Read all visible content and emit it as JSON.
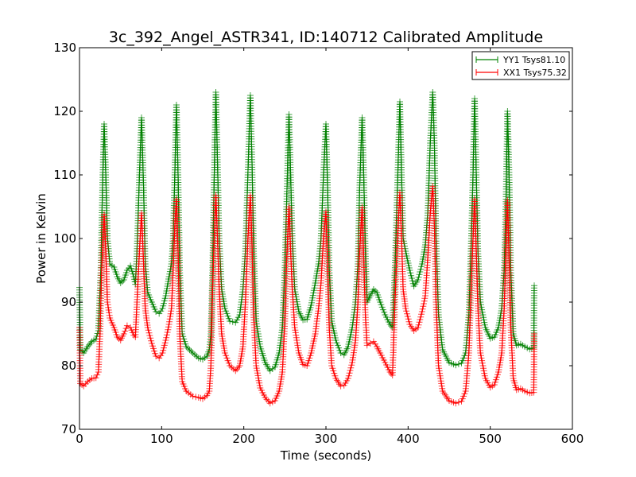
{
  "chart_data": {
    "type": "line",
    "title": "3c_392_Angel_ASTR341, ID:140712 Calibrated Amplitude",
    "xlabel": "Time (seconds)",
    "ylabel": "Power in Kelvin",
    "xlim": [
      0,
      600
    ],
    "ylim": [
      70,
      130
    ],
    "xticks": [
      "0",
      "100",
      "200",
      "300",
      "400",
      "500",
      "600"
    ],
    "yticks": [
      "70",
      "80",
      "90",
      "100",
      "110",
      "120",
      "130"
    ],
    "grid": false,
    "legend": "top-right",
    "marker": "+",
    "series": [
      {
        "name": "YY1 Tsys81.10",
        "color": "#008000",
        "points": [
          [
            0,
            92.3
          ],
          [
            1,
            82.5
          ],
          [
            5,
            82.0
          ],
          [
            10,
            83.0
          ],
          [
            15,
            83.8
          ],
          [
            20,
            84.2
          ],
          [
            23,
            85.5
          ],
          [
            26,
            95
          ],
          [
            28,
            108
          ],
          [
            30,
            118
          ],
          [
            32,
            110
          ],
          [
            34,
            100
          ],
          [
            37,
            96
          ],
          [
            42,
            95.5
          ],
          [
            46,
            94
          ],
          [
            50,
            93
          ],
          [
            54,
            93.5
          ],
          [
            58,
            95
          ],
          [
            62,
            95.7
          ],
          [
            66,
            94
          ],
          [
            68,
            92.8
          ],
          [
            70,
            98
          ],
          [
            73,
            110
          ],
          [
            75.5,
            119
          ],
          [
            78,
            108
          ],
          [
            80,
            96
          ],
          [
            83,
            91.5
          ],
          [
            88,
            90
          ],
          [
            93,
            88.5
          ],
          [
            97,
            88.2
          ],
          [
            101,
            89
          ],
          [
            105,
            91
          ],
          [
            109,
            94
          ],
          [
            112,
            96
          ],
          [
            114,
            100
          ],
          [
            116,
            110
          ],
          [
            118,
            121
          ],
          [
            120,
            110
          ],
          [
            122,
            95
          ],
          [
            125,
            85
          ],
          [
            130,
            83
          ],
          [
            138,
            82
          ],
          [
            145,
            81.2
          ],
          [
            150,
            81
          ],
          [
            155,
            81.5
          ],
          [
            158,
            82.5
          ],
          [
            160,
            85
          ],
          [
            162,
            95
          ],
          [
            164,
            110
          ],
          [
            166,
            123
          ],
          [
            168,
            112
          ],
          [
            170,
            100
          ],
          [
            173,
            92
          ],
          [
            177,
            89
          ],
          [
            183,
            87
          ],
          [
            190,
            86.8
          ],
          [
            195,
            88
          ],
          [
            199,
            92
          ],
          [
            202,
            98
          ],
          [
            205,
            110
          ],
          [
            208,
            122.5
          ],
          [
            210,
            112
          ],
          [
            212,
            98
          ],
          [
            215,
            87
          ],
          [
            220,
            83
          ],
          [
            226,
            80.5
          ],
          [
            232,
            79.2
          ],
          [
            238,
            79.8
          ],
          [
            243,
            82
          ],
          [
            247,
            86
          ],
          [
            250,
            95
          ],
          [
            252,
            105
          ],
          [
            255,
            119.5
          ],
          [
            257,
            110
          ],
          [
            259,
            100
          ],
          [
            262,
            92
          ],
          [
            267,
            88.5
          ],
          [
            272,
            87.2
          ],
          [
            277,
            87.3
          ],
          [
            282,
            89.5
          ],
          [
            287,
            93
          ],
          [
            291,
            96
          ],
          [
            294,
            100
          ],
          [
            297,
            110
          ],
          [
            300,
            118
          ],
          [
            302,
            108
          ],
          [
            304,
            95
          ],
          [
            307,
            87
          ],
          [
            312,
            84
          ],
          [
            318,
            82
          ],
          [
            322,
            81.7
          ],
          [
            327,
            83
          ],
          [
            332,
            86
          ],
          [
            336,
            90
          ],
          [
            339,
            96
          ],
          [
            341,
            108
          ],
          [
            344,
            119
          ],
          [
            346,
            110
          ],
          [
            348,
            98
          ],
          [
            350,
            90
          ],
          [
            354,
            91
          ],
          [
            358,
            92
          ],
          [
            362,
            91.5
          ],
          [
            366,
            90
          ],
          [
            372,
            88
          ],
          [
            378,
            86.5
          ],
          [
            381,
            86
          ],
          [
            384,
            95
          ],
          [
            387,
            108
          ],
          [
            390,
            121.5
          ],
          [
            392,
            110
          ],
          [
            394,
            100
          ],
          [
            397,
            98
          ],
          [
            402,
            95
          ],
          [
            407,
            92.5
          ],
          [
            412,
            93.5
          ],
          [
            417,
            96
          ],
          [
            421,
            99
          ],
          [
            424,
            104
          ],
          [
            427,
            115
          ],
          [
            430,
            123
          ],
          [
            432,
            115
          ],
          [
            434,
            100
          ],
          [
            437,
            88
          ],
          [
            442,
            82.5
          ],
          [
            450,
            80.5
          ],
          [
            458,
            80.1
          ],
          [
            465,
            80.4
          ],
          [
            470,
            82
          ],
          [
            474,
            88
          ],
          [
            477,
            100
          ],
          [
            479,
            110
          ],
          [
            481,
            122
          ],
          [
            483,
            110
          ],
          [
            485,
            98
          ],
          [
            488,
            90
          ],
          [
            494,
            86
          ],
          [
            500,
            84.3
          ],
          [
            505,
            84.5
          ],
          [
            510,
            86
          ],
          [
            514,
            89
          ],
          [
            517,
            95
          ],
          [
            519,
            105
          ],
          [
            521,
            120
          ],
          [
            523,
            110
          ],
          [
            525,
            95
          ],
          [
            528,
            85
          ],
          [
            532,
            83.2
          ],
          [
            537,
            83.4
          ],
          [
            542,
            83
          ],
          [
            548,
            82.6
          ],
          [
            553,
            82.8
          ],
          [
            553.5,
            92.6
          ]
        ]
      },
      {
        "name": "XX1 Tsys75.32",
        "color": "#ff0000",
        "points": [
          [
            0,
            86.0
          ],
          [
            1,
            77.2
          ],
          [
            5,
            76.8
          ],
          [
            10,
            77.5
          ],
          [
            15,
            78.0
          ],
          [
            20,
            78.1
          ],
          [
            23,
            79
          ],
          [
            25,
            85
          ],
          [
            27,
            95
          ],
          [
            30,
            103.8
          ],
          [
            32,
            98
          ],
          [
            34,
            90
          ],
          [
            37,
            87.5
          ],
          [
            42,
            86
          ],
          [
            46,
            84.5
          ],
          [
            50,
            84
          ],
          [
            54,
            85
          ],
          [
            58,
            86.3
          ],
          [
            62,
            86
          ],
          [
            66,
            84.8
          ],
          [
            68,
            84.5
          ],
          [
            70,
            90
          ],
          [
            73,
            98
          ],
          [
            75.5,
            104
          ],
          [
            78,
            96
          ],
          [
            80,
            89
          ],
          [
            83,
            86
          ],
          [
            88,
            83.5
          ],
          [
            93,
            81.5
          ],
          [
            97,
            81.2
          ],
          [
            101,
            82
          ],
          [
            105,
            84
          ],
          [
            109,
            86.5
          ],
          [
            112,
            89
          ],
          [
            114,
            95
          ],
          [
            116,
            102
          ],
          [
            118,
            106.2
          ],
          [
            120,
            98
          ],
          [
            122,
            85
          ],
          [
            125,
            77.5
          ],
          [
            130,
            76
          ],
          [
            138,
            75.2
          ],
          [
            145,
            75
          ],
          [
            150,
            74.8
          ],
          [
            155,
            75.3
          ],
          [
            158,
            76
          ],
          [
            160,
            80
          ],
          [
            162,
            92
          ],
          [
            164,
            100
          ],
          [
            166,
            106.8
          ],
          [
            168,
            100
          ],
          [
            170,
            92
          ],
          [
            173,
            85
          ],
          [
            177,
            82
          ],
          [
            183,
            80
          ],
          [
            190,
            79.2
          ],
          [
            195,
            80
          ],
          [
            199,
            83
          ],
          [
            202,
            90
          ],
          [
            205,
            100
          ],
          [
            208,
            106.8
          ],
          [
            210,
            99
          ],
          [
            212,
            88
          ],
          [
            215,
            80
          ],
          [
            220,
            76.5
          ],
          [
            226,
            75
          ],
          [
            232,
            74.1
          ],
          [
            238,
            74.5
          ],
          [
            243,
            76
          ],
          [
            247,
            79
          ],
          [
            250,
            87
          ],
          [
            252,
            96
          ],
          [
            255,
            105
          ],
          [
            257,
            98
          ],
          [
            259,
            92
          ],
          [
            262,
            86
          ],
          [
            267,
            82
          ],
          [
            272,
            80.2
          ],
          [
            277,
            80
          ],
          [
            282,
            82
          ],
          [
            287,
            85
          ],
          [
            291,
            89
          ],
          [
            294,
            93
          ],
          [
            297,
            100
          ],
          [
            300,
            104.2
          ],
          [
            302,
            96
          ],
          [
            304,
            86
          ],
          [
            307,
            80
          ],
          [
            312,
            78
          ],
          [
            318,
            76.8
          ],
          [
            322,
            76.9
          ],
          [
            327,
            78
          ],
          [
            332,
            80.5
          ],
          [
            336,
            84
          ],
          [
            339,
            90
          ],
          [
            341,
            98
          ],
          [
            344,
            104.9
          ],
          [
            346,
            97
          ],
          [
            348,
            88
          ],
          [
            350,
            83.2
          ],
          [
            354,
            83.5
          ],
          [
            358,
            83.8
          ],
          [
            362,
            83
          ],
          [
            366,
            82
          ],
          [
            372,
            80.5
          ],
          [
            378,
            79
          ],
          [
            381,
            78.5
          ],
          [
            384,
            90
          ],
          [
            387,
            100
          ],
          [
            390,
            107.2
          ],
          [
            392,
            100
          ],
          [
            394,
            92
          ],
          [
            397,
            89
          ],
          [
            402,
            86.5
          ],
          [
            407,
            85.5
          ],
          [
            412,
            86
          ],
          [
            417,
            88.5
          ],
          [
            421,
            91
          ],
          [
            424,
            97
          ],
          [
            427,
            104
          ],
          [
            430,
            108.2
          ],
          [
            432,
            102
          ],
          [
            434,
            90
          ],
          [
            437,
            80
          ],
          [
            442,
            76
          ],
          [
            450,
            74.5
          ],
          [
            458,
            74.1
          ],
          [
            465,
            74.4
          ],
          [
            470,
            76
          ],
          [
            474,
            82
          ],
          [
            477,
            93
          ],
          [
            479,
            100
          ],
          [
            481,
            106.2
          ],
          [
            483,
            98
          ],
          [
            485,
            89
          ],
          [
            488,
            82
          ],
          [
            494,
            78
          ],
          [
            500,
            76.6
          ],
          [
            505,
            77
          ],
          [
            510,
            79
          ],
          [
            514,
            82
          ],
          [
            517,
            89
          ],
          [
            519,
            98
          ],
          [
            521,
            106
          ],
          [
            523,
            97
          ],
          [
            525,
            86
          ],
          [
            528,
            78
          ],
          [
            532,
            76.2
          ],
          [
            537,
            76.4
          ],
          [
            542,
            76
          ],
          [
            548,
            75.7
          ],
          [
            553,
            75.8
          ],
          [
            553.5,
            85
          ]
        ]
      }
    ]
  }
}
